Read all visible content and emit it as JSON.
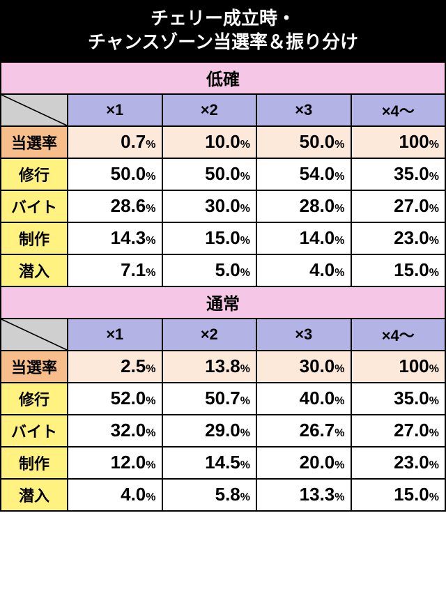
{
  "title_line1": "チェリー成立時・",
  "title_line2": "チャンスゾーン当選率＆振り分け",
  "columns": [
    "×1",
    "×2",
    "×3",
    "×4～"
  ],
  "win_rate_label": "当選率",
  "row_labels": [
    "修行",
    "バイト",
    "制作",
    "潜入"
  ],
  "sections": [
    {
      "name": "低確",
      "win_rate": [
        "0.7",
        "10.0",
        "50.0",
        "100"
      ],
      "rows": [
        [
          "50.0",
          "50.0",
          "54.0",
          "35.0"
        ],
        [
          "28.6",
          "30.0",
          "28.0",
          "27.0"
        ],
        [
          "14.3",
          "15.0",
          "14.0",
          "23.0"
        ],
        [
          "7.1",
          "5.0",
          "4.0",
          "15.0"
        ]
      ]
    },
    {
      "name": "通常",
      "win_rate": [
        "2.5",
        "13.8",
        "30.0",
        "100"
      ],
      "rows": [
        [
          "52.0",
          "50.7",
          "40.0",
          "35.0"
        ],
        [
          "32.0",
          "29.0",
          "26.7",
          "27.0"
        ],
        [
          "12.0",
          "14.5",
          "20.0",
          "23.0"
        ],
        [
          "4.0",
          "5.8",
          "13.3",
          "15.0"
        ]
      ]
    }
  ],
  "colors": {
    "title_bg": "#000000",
    "title_fg": "#ffffff",
    "section_bg": "#f5c6e6",
    "corner_bg": "#cfcfcf",
    "colhead_bg": "#b3b3e6",
    "orange_label_bg": "#f7bd8a",
    "orange_cell_bg": "#fce9d9",
    "yellow_label_bg": "#fff280",
    "white_cell_bg": "#ffffff",
    "border": "#000000"
  }
}
